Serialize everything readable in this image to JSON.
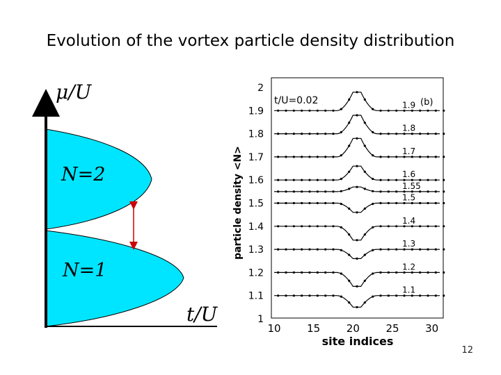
{
  "slide": {
    "title": "Evolution of  the vortex particle density distribution",
    "page_number": "12"
  },
  "phase_diagram": {
    "y_axis_label": "μ/U",
    "x_axis_label": "t/U",
    "lobe_upper_label": "N=2",
    "lobe_lower_label": "N=1",
    "lobe_color": "#00e5ff",
    "arrow_color": "#cc0000"
  },
  "chart_data": [
    {
      "type": "line",
      "title": "",
      "xlabel": "site indices",
      "ylabel": "particle density <N>",
      "xlim": [
        10,
        31
      ],
      "ylim": [
        1,
        2
      ],
      "x_ticks": [
        "10",
        "15",
        "20",
        "25",
        "30"
      ],
      "y_ticks": [
        "1",
        "1.1",
        "1.2",
        "1.3",
        "1.4",
        "1.5",
        "1.6",
        "1.7",
        "1.8",
        "1.9",
        "2"
      ],
      "annotation_param": "t/U=0.02",
      "panel_label": "(b)",
      "site_range": [
        10,
        31
      ],
      "center_site": 20.5,
      "series": [
        {
          "name": "1.9",
          "base": 1.9,
          "center_value": 1.98
        },
        {
          "name": "1.8",
          "base": 1.8,
          "center_value": 1.88
        },
        {
          "name": "1.7",
          "base": 1.7,
          "center_value": 1.78
        },
        {
          "name": "1.6",
          "base": 1.6,
          "center_value": 1.66
        },
        {
          "name": "1.55",
          "base": 1.55,
          "center_value": 1.57
        },
        {
          "name": "1.5",
          "base": 1.5,
          "center_value": 1.46
        },
        {
          "name": "1.4",
          "base": 1.4,
          "center_value": 1.34
        },
        {
          "name": "1.3",
          "base": 1.3,
          "center_value": 1.26
        },
        {
          "name": "1.2",
          "base": 1.2,
          "center_value": 1.14
        },
        {
          "name": "1.1",
          "base": 1.1,
          "center_value": 1.05
        }
      ],
      "legend": "none"
    }
  ]
}
